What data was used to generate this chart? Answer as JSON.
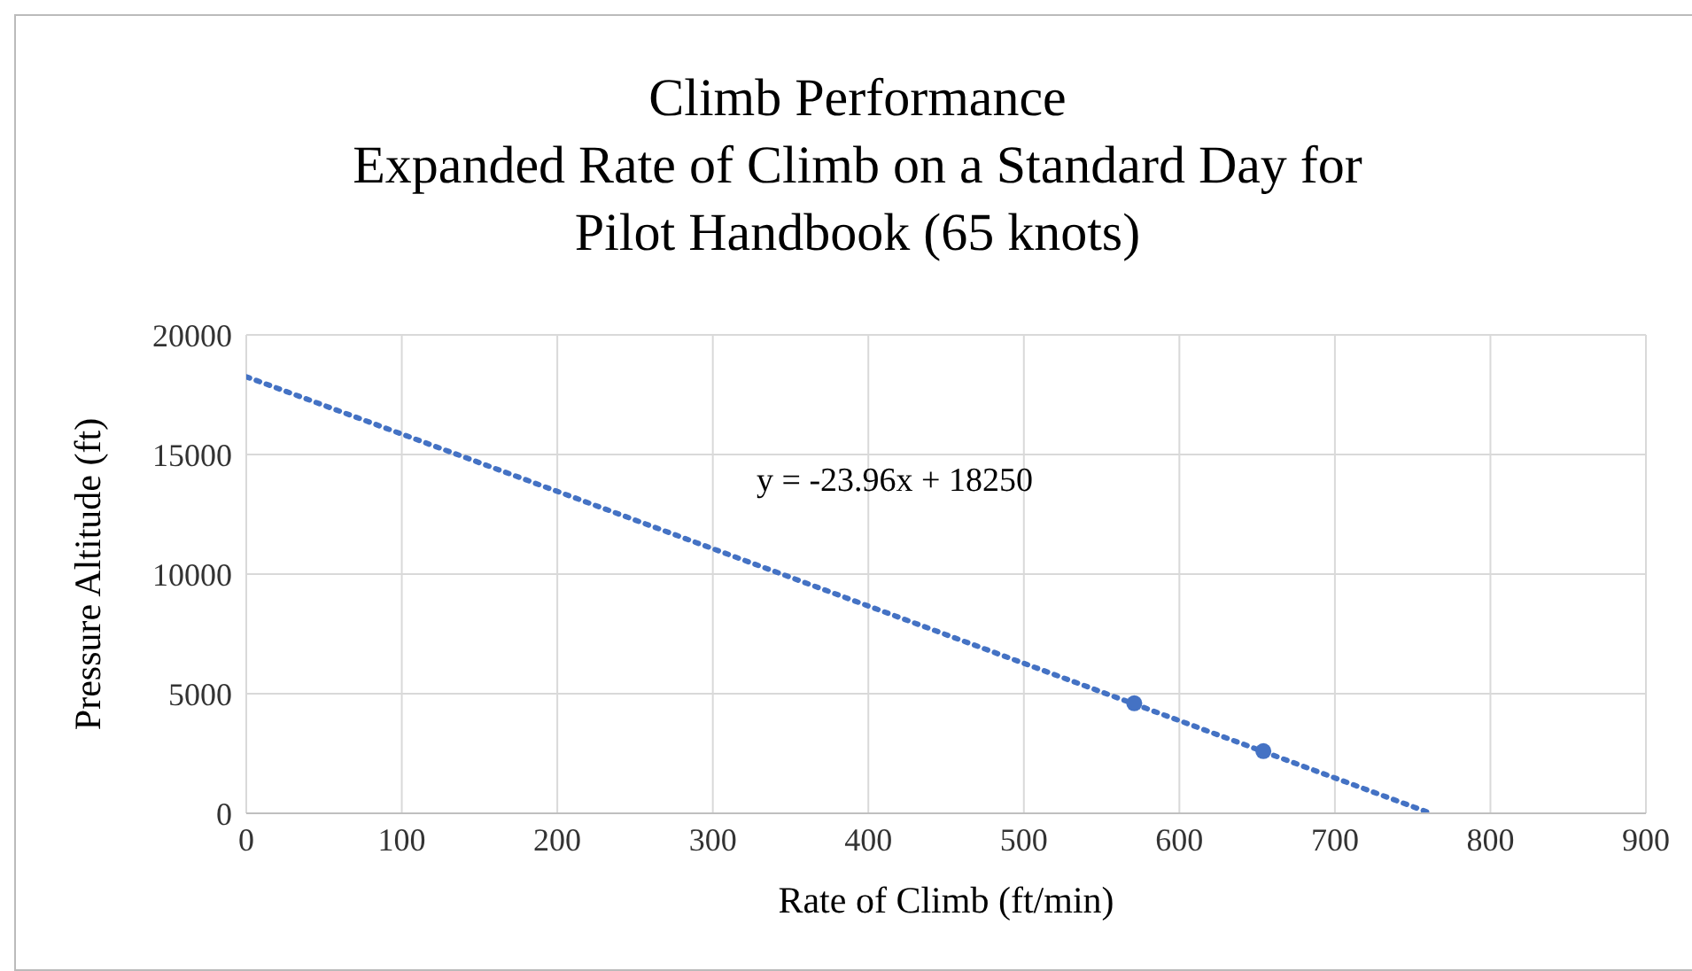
{
  "chart_data": {
    "type": "scatter",
    "title": "Climb Performance\nExpanded Rate of Climb on a Standard Day for\nPilot Handbook (65 knots)",
    "xlabel": "Rate of Climb (ft/min)",
    "ylabel": "Pressure Altitude (ft)",
    "x": [
      571,
      654
    ],
    "series": [
      {
        "color": "#4472c4",
        "values": [
          4600,
          2600
        ],
        "marker": "circle"
      },
      {
        "type": "line",
        "color": "#4472c4",
        "x": [
          0,
          761.7
        ],
        "values": [
          18250,
          0
        ],
        "line_style": "dotted",
        "marker": "none"
      }
    ],
    "annotations": [
      "y = -23.96x + 18250"
    ],
    "xlim": [
      0,
      900
    ],
    "xticks": [
      0,
      100,
      200,
      300,
      400,
      500,
      600,
      700,
      800,
      900
    ],
    "ylim": [
      0,
      20000
    ],
    "yticks": [
      0,
      5000,
      10000,
      15000,
      20000
    ],
    "grid": true
  }
}
